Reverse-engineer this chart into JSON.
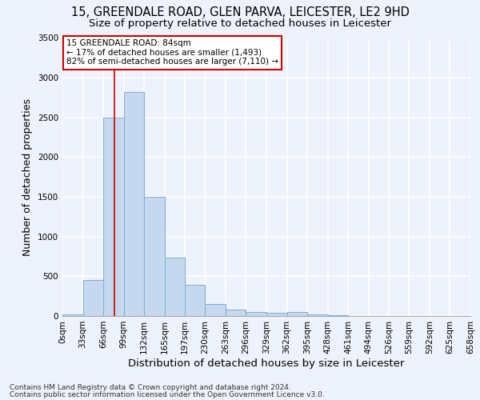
{
  "title_line1": "15, GREENDALE ROAD, GLEN PARVA, LEICESTER, LE2 9HD",
  "title_line2": "Size of property relative to detached houses in Leicester",
  "xlabel": "Distribution of detached houses by size in Leicester",
  "ylabel": "Number of detached properties",
  "footnote1": "Contains HM Land Registry data © Crown copyright and database right 2024.",
  "footnote2": "Contains public sector information licensed under the Open Government Licence v3.0.",
  "annotation_title": "15 GREENDALE ROAD: 84sqm",
  "annotation_line2": "← 17% of detached houses are smaller (1,493)",
  "annotation_line3": "82% of semi-detached houses are larger (7,110) →",
  "bar_color": "#c5d8f0",
  "bar_edge_color": "#7aafd4",
  "vline_color": "#cc0000",
  "vline_x": 84,
  "bin_edges": [
    0,
    33,
    66,
    99,
    132,
    165,
    197,
    230,
    263,
    296,
    329,
    362,
    395,
    428,
    461,
    494,
    526,
    559,
    592,
    625,
    658
  ],
  "bar_heights": [
    20,
    450,
    2500,
    2820,
    1500,
    740,
    390,
    150,
    80,
    55,
    40,
    50,
    20,
    8,
    3,
    2,
    1,
    1,
    1,
    1
  ],
  "ylim": [
    0,
    3500
  ],
  "yticks": [
    0,
    500,
    1000,
    1500,
    2000,
    2500,
    3000,
    3500
  ],
  "background_color": "#eef2fc",
  "grid_color": "#ffffff",
  "annotation_box_color": "#ffffff",
  "annotation_box_edge_color": "#cc0000",
  "title_fontsize": 10.5,
  "subtitle_fontsize": 9.5,
  "axis_label_fontsize": 9,
  "tick_fontsize": 7.5,
  "annotation_fontsize": 7.5,
  "footnote_fontsize": 6.5
}
